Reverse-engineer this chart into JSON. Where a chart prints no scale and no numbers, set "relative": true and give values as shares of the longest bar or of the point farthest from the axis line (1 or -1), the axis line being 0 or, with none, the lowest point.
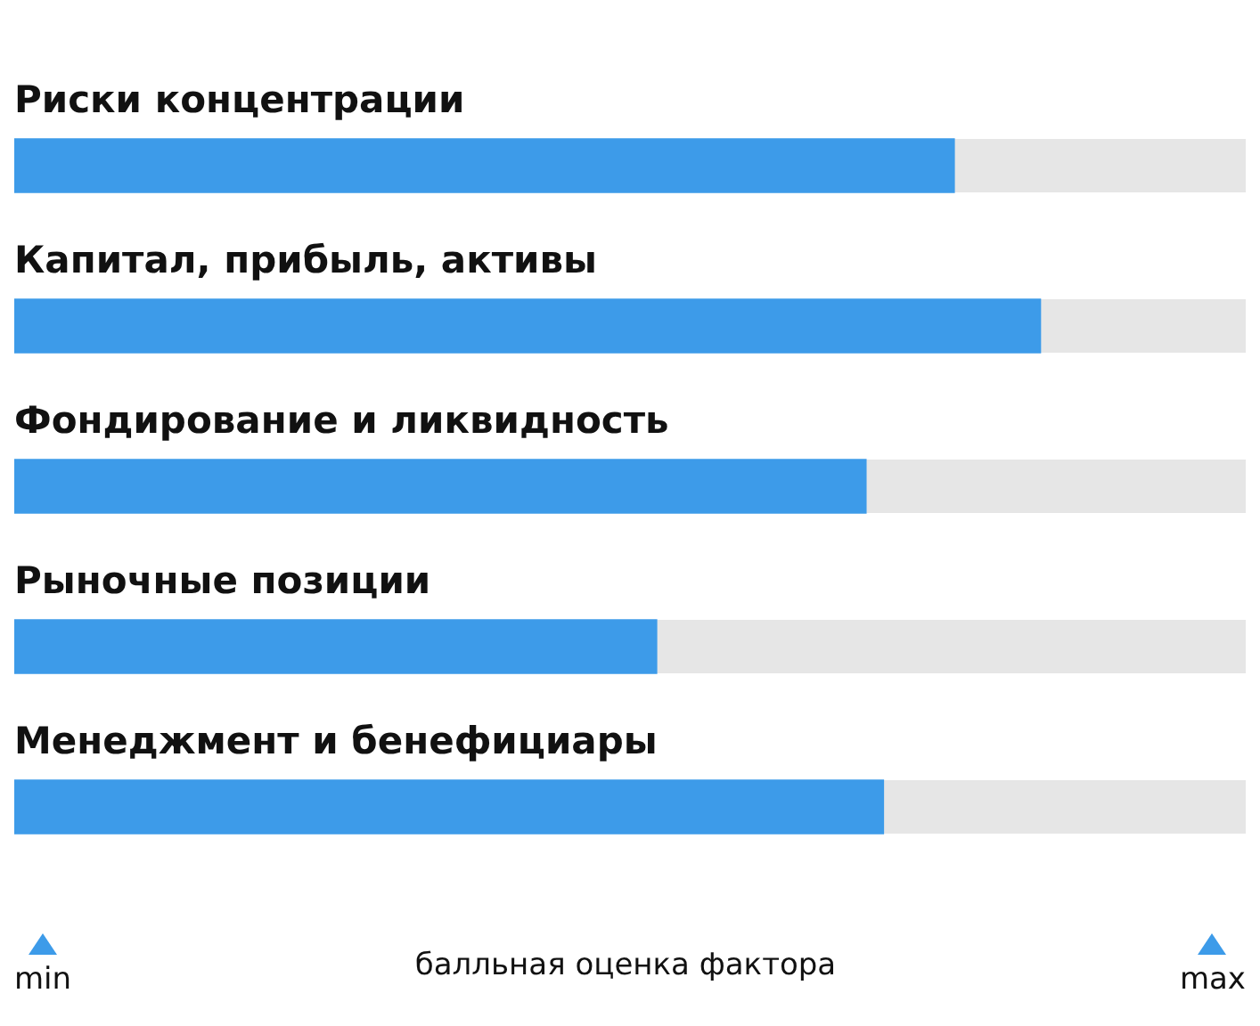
{
  "chart_data": {
    "type": "bar",
    "orientation": "horizontal",
    "relative": true,
    "categories": [
      "Риски концентрации",
      "Капитал, прибыль, активы",
      "Фондирование и ликвидность",
      "Рыночные позиции",
      "Менеджмент и бенефициары"
    ],
    "values": [
      0.916,
      1,
      0.83,
      0.626,
      0.847
    ],
    "color": "#3d9be9",
    "xlabel": "балльная оценка фактора",
    "annotations": [
      "min",
      "max"
    ],
    "legend": false
  }
}
